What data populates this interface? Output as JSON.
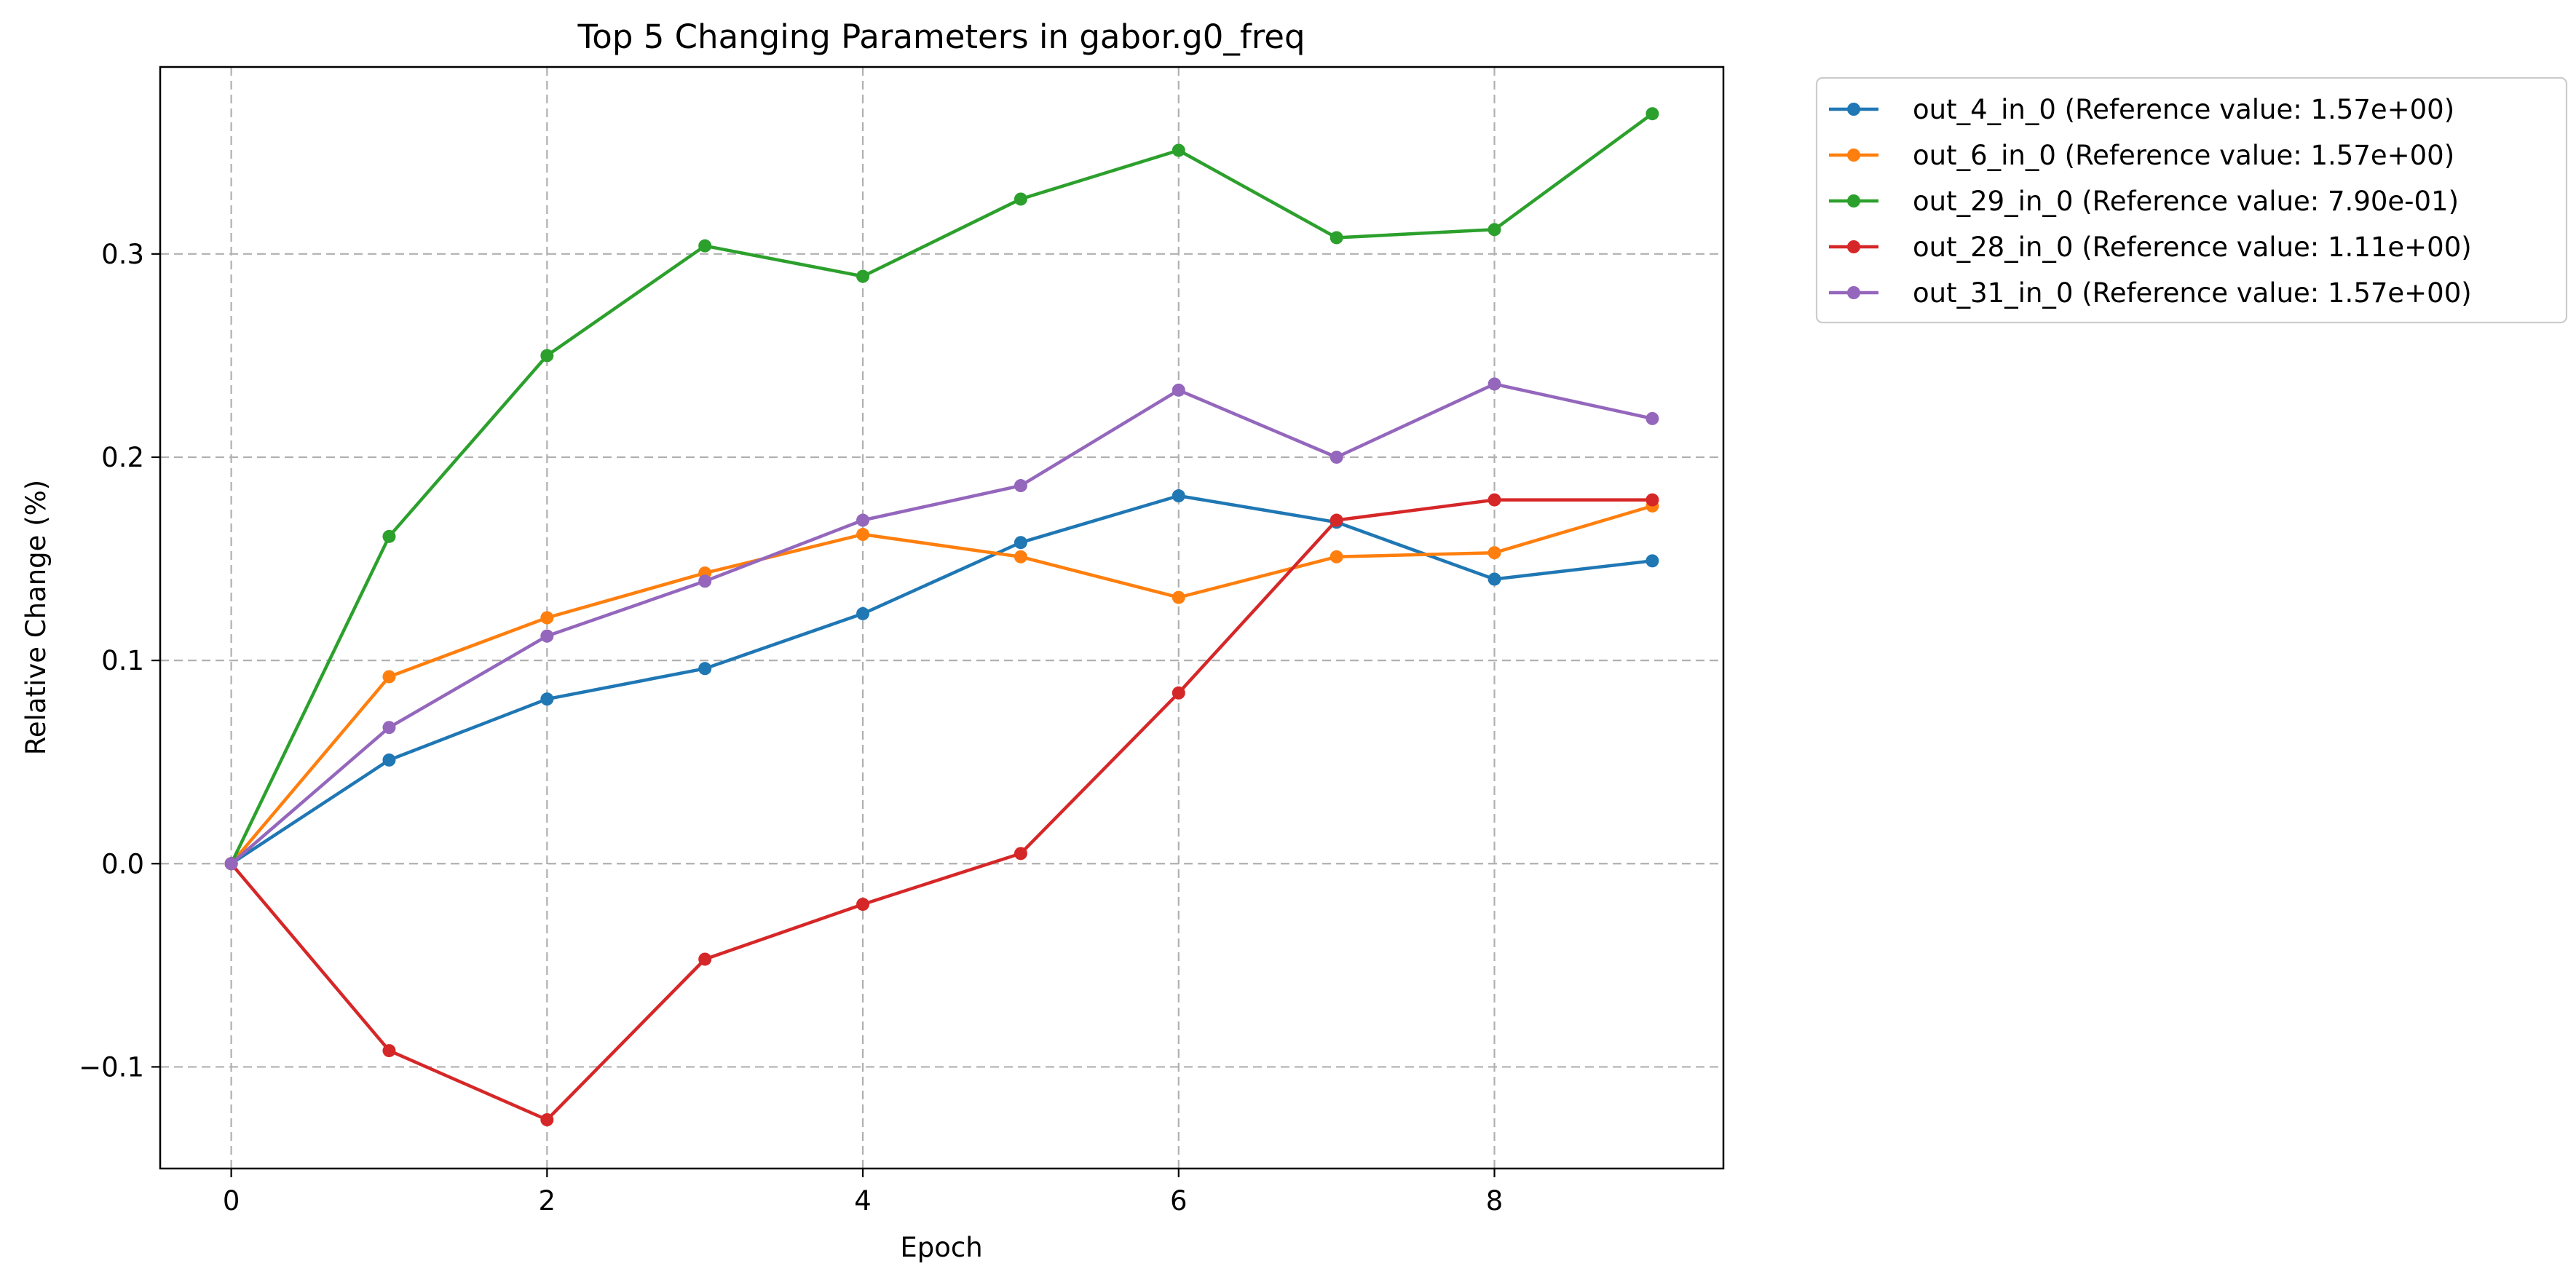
{
  "chart_data": {
    "type": "line",
    "title": "Top 5 Changing Parameters in gabor.g0_freq",
    "xlabel": "Epoch",
    "ylabel": "Relative Change (%)",
    "xlim": [
      -0.45,
      9.45
    ],
    "ylim": [
      -0.15,
      0.392
    ],
    "x_ticks": [
      0,
      2,
      4,
      6,
      8
    ],
    "x_tick_labels": [
      "0",
      "2",
      "4",
      "6",
      "8"
    ],
    "y_ticks": [
      -0.1,
      0.0,
      0.1,
      0.2,
      0.3
    ],
    "y_tick_labels": [
      "−0.1",
      "0.0",
      "0.1",
      "0.2",
      "0.3"
    ],
    "grid": true,
    "legend_position": "outside-top-right",
    "x": [
      0,
      1,
      2,
      3,
      4,
      5,
      6,
      7,
      8,
      9
    ],
    "series": [
      {
        "name": "out_4_in_0 (Reference value: 1.57e+00)",
        "color": "#1f77b4",
        "values": [
          0.0,
          0.051,
          0.081,
          0.096,
          0.123,
          0.158,
          0.181,
          0.168,
          0.14,
          0.149
        ]
      },
      {
        "name": "out_6_in_0 (Reference value: 1.57e+00)",
        "color": "#ff7f0e",
        "values": [
          0.0,
          0.092,
          0.121,
          0.143,
          0.162,
          0.151,
          0.131,
          0.151,
          0.153,
          0.176
        ]
      },
      {
        "name": "out_29_in_0 (Reference value: 7.90e-01)",
        "color": "#2ca02c",
        "values": [
          0.0,
          0.161,
          0.25,
          0.304,
          0.289,
          0.327,
          0.351,
          0.308,
          0.312,
          0.369
        ]
      },
      {
        "name": "out_28_in_0 (Reference value: 1.11e+00)",
        "color": "#d62728",
        "values": [
          0.0,
          -0.092,
          -0.126,
          -0.047,
          -0.02,
          0.005,
          0.084,
          0.169,
          0.179,
          0.179
        ]
      },
      {
        "name": "out_31_in_0 (Reference value: 1.57e+00)",
        "color": "#9467bd",
        "values": [
          0.0,
          0.067,
          0.112,
          0.139,
          0.169,
          0.186,
          0.233,
          0.2,
          0.236,
          0.219
        ]
      }
    ]
  }
}
